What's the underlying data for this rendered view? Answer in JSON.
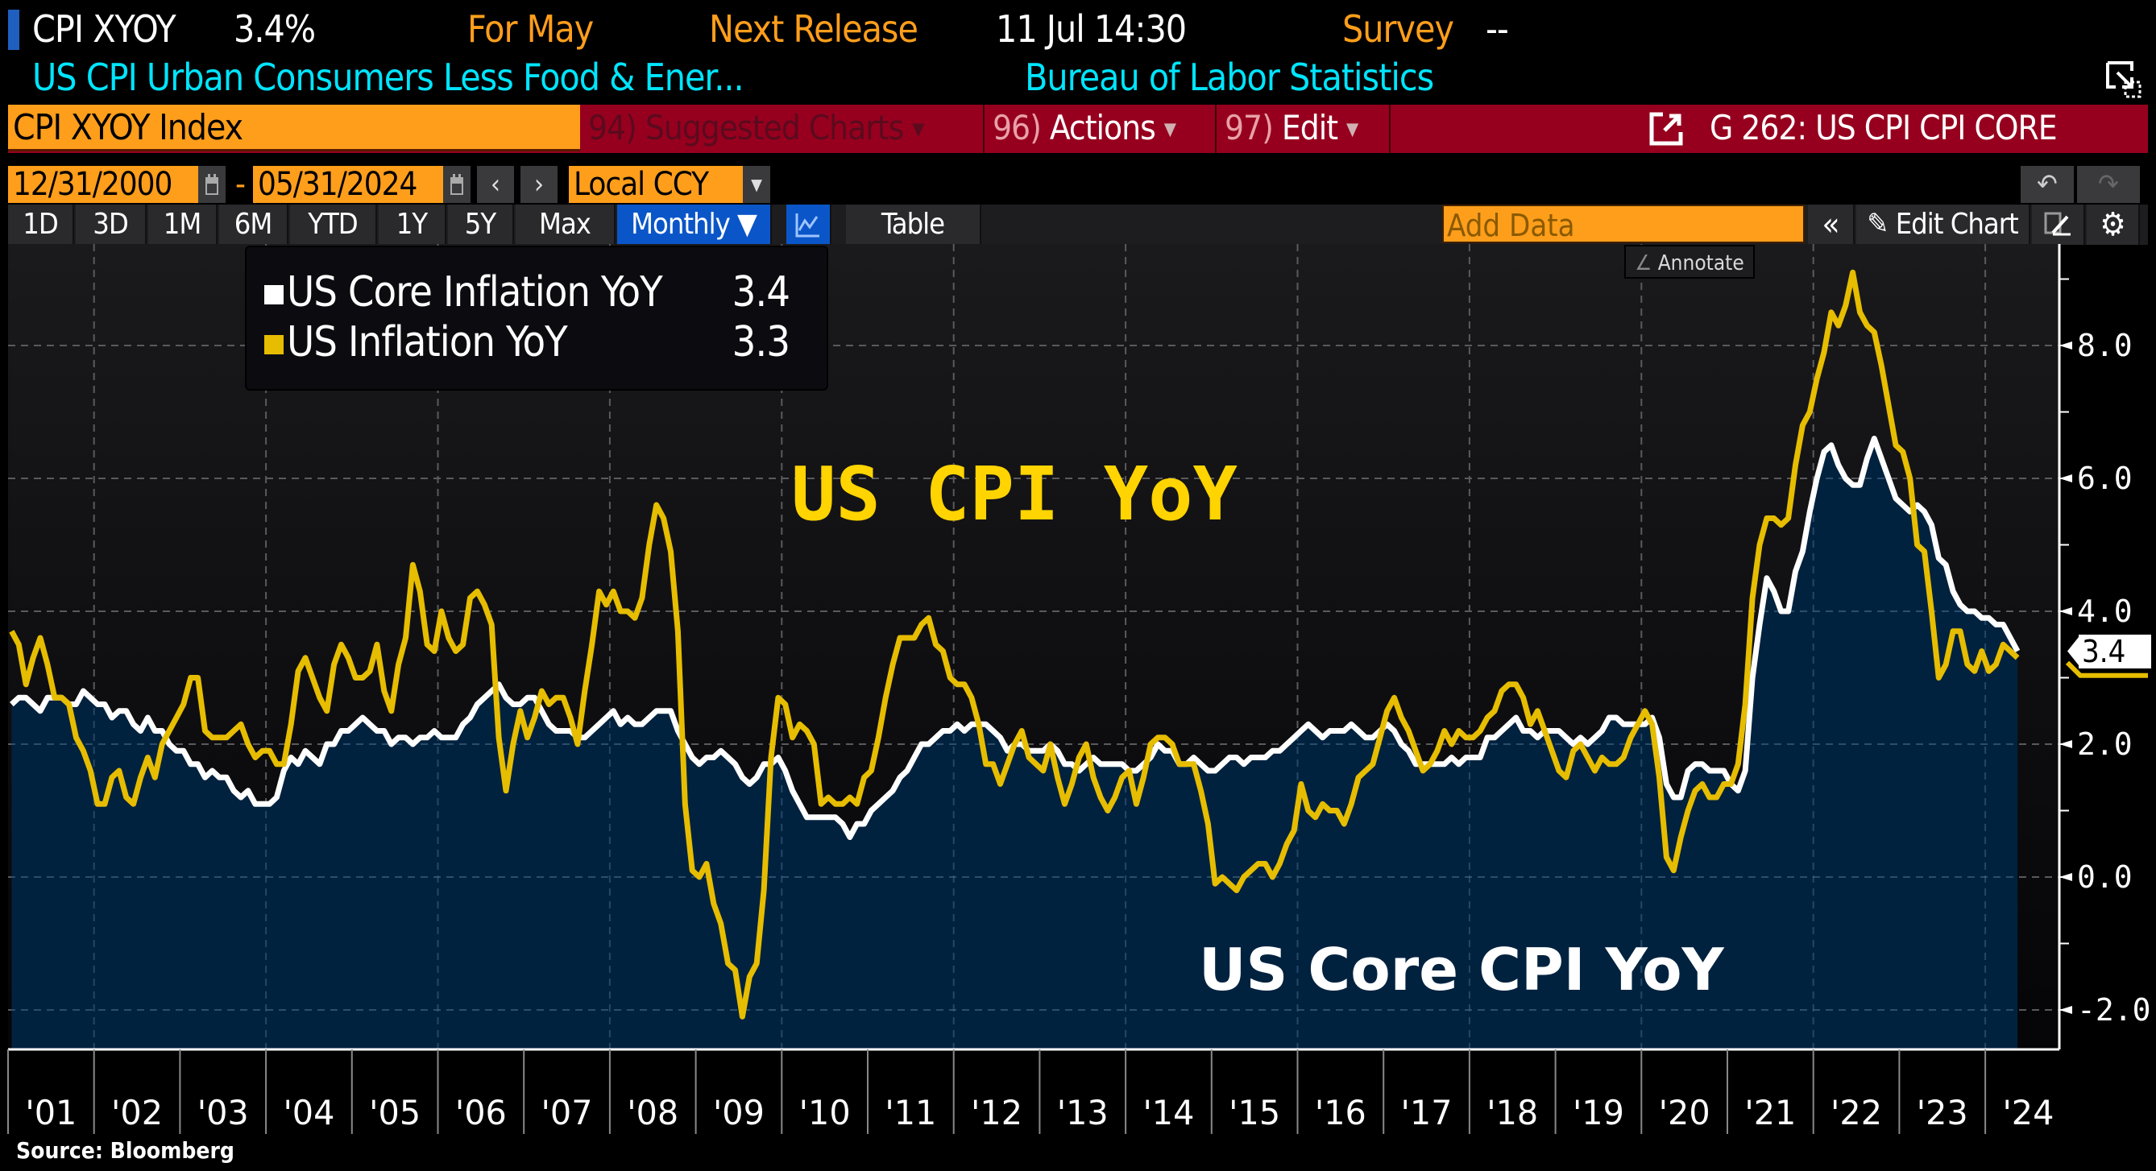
{
  "header": {
    "ticker": "CPI XYOY",
    "value": "3.4%",
    "period_label": "For May",
    "next_release_label": "Next Release",
    "next_release_value": "11 Jul 14:30",
    "survey_label": "Survey",
    "survey_value": "--",
    "description": "US CPI Urban Consumers Less Food & Ener...",
    "source_agency": "Bureau of Labor Statistics"
  },
  "command_bar": {
    "security": "CPI XYOY Index",
    "suggested_charts": {
      "num": "94)",
      "label": "Suggested Charts"
    },
    "actions": {
      "num": "96)",
      "label": "Actions"
    },
    "edit": {
      "num": "97)",
      "label": "Edit"
    },
    "chart_id": "G 262: US CPI CPI CORE"
  },
  "date_range": {
    "start": "12/31/2000",
    "separator": "-",
    "end": "05/31/2024",
    "prev": "‹",
    "next": "›",
    "currency": "Local CCY"
  },
  "tabs": {
    "periods": [
      "1D",
      "3D",
      "1M",
      "6M",
      "YTD",
      "1Y",
      "5Y",
      "Max"
    ],
    "frequency": "Monthly ▼",
    "table": "Table",
    "add_data_placeholder": "Add Data",
    "collapse": "«",
    "edit_chart": "Edit Chart",
    "undo": "↶",
    "redo": "↷",
    "annotate": "Annotate"
  },
  "colors": {
    "core": "#ffffff",
    "headline": "#e6bd00",
    "area_fill": "#01223f",
    "accent_orange": "#ff9e1b",
    "command_red": "#96001e",
    "cyan": "#00e5ff"
  },
  "chart_data": {
    "type": "line",
    "title": "",
    "annotations": [
      "US CPI YoY",
      "US Core CPI YoY"
    ],
    "xlabel": "",
    "ylabel": "",
    "x_start": "2001-01",
    "x_end": "2024-05",
    "frequency": "monthly",
    "ylim": [
      -2.6,
      9.5
    ],
    "yticks": [
      -2.0,
      0.0,
      2.0,
      4.0,
      6.0,
      8.0
    ],
    "ytick_labels": [
      "-2.0",
      "0.0",
      "2.0",
      "4.0",
      "6.0",
      "8.0"
    ],
    "xtick_labels": [
      "'01",
      "'02",
      "'03",
      "'04",
      "'05",
      "'06",
      "'07",
      "'08",
      "'09",
      "'10",
      "'11",
      "'12",
      "'13",
      "'14",
      "'15",
      "'16",
      "'17",
      "'18",
      "'19",
      "'20",
      "'21",
      "'22",
      "'23",
      "'24"
    ],
    "grid": true,
    "legend_position": "top-left",
    "last_value_label": "3.4",
    "source": "Source: Bloomberg",
    "series": [
      {
        "name": "US Core Inflation YoY",
        "legend_value": "3.4",
        "style": "area",
        "values": [
          2.6,
          2.7,
          2.7,
          2.6,
          2.5,
          2.7,
          2.7,
          2.7,
          2.6,
          2.6,
          2.8,
          2.7,
          2.6,
          2.6,
          2.4,
          2.5,
          2.5,
          2.3,
          2.2,
          2.4,
          2.2,
          2.2,
          2.0,
          1.9,
          1.9,
          1.7,
          1.7,
          1.5,
          1.6,
          1.5,
          1.5,
          1.3,
          1.2,
          1.3,
          1.1,
          1.1,
          1.1,
          1.2,
          1.6,
          1.8,
          1.7,
          1.9,
          1.8,
          1.7,
          2.0,
          2.0,
          2.2,
          2.2,
          2.3,
          2.4,
          2.3,
          2.2,
          2.2,
          2.0,
          2.1,
          2.1,
          2.0,
          2.1,
          2.1,
          2.2,
          2.1,
          2.1,
          2.1,
          2.3,
          2.4,
          2.6,
          2.7,
          2.8,
          2.9,
          2.7,
          2.6,
          2.6,
          2.7,
          2.7,
          2.5,
          2.3,
          2.2,
          2.2,
          2.2,
          2.1,
          2.1,
          2.2,
          2.3,
          2.4,
          2.5,
          2.3,
          2.4,
          2.3,
          2.3,
          2.4,
          2.5,
          2.5,
          2.5,
          2.2,
          2.0,
          1.8,
          1.7,
          1.8,
          1.8,
          1.9,
          1.8,
          1.7,
          1.5,
          1.4,
          1.5,
          1.7,
          1.7,
          1.8,
          1.6,
          1.3,
          1.1,
          0.9,
          0.9,
          0.9,
          0.9,
          0.9,
          0.8,
          0.6,
          0.8,
          0.8,
          1.0,
          1.1,
          1.2,
          1.3,
          1.5,
          1.6,
          1.8,
          2.0,
          2.0,
          2.1,
          2.2,
          2.2,
          2.3,
          2.2,
          2.3,
          2.3,
          2.3,
          2.2,
          2.1,
          1.9,
          2.0,
          2.0,
          1.9,
          1.9,
          1.9,
          2.0,
          1.9,
          1.7,
          1.7,
          1.6,
          1.7,
          1.8,
          1.7,
          1.7,
          1.7,
          1.7,
          1.6,
          1.6,
          1.7,
          1.8,
          2.0,
          1.9,
          1.9,
          1.7,
          1.7,
          1.8,
          1.7,
          1.6,
          1.6,
          1.7,
          1.8,
          1.8,
          1.7,
          1.8,
          1.8,
          1.8,
          1.9,
          1.9,
          2.0,
          2.1,
          2.2,
          2.3,
          2.2,
          2.1,
          2.2,
          2.2,
          2.2,
          2.3,
          2.2,
          2.1,
          2.1,
          2.2,
          2.3,
          2.2,
          2.0,
          1.9,
          1.7,
          1.7,
          1.7,
          1.7,
          1.7,
          1.8,
          1.7,
          1.8,
          1.8,
          1.8,
          2.1,
          2.1,
          2.2,
          2.3,
          2.4,
          2.2,
          2.2,
          2.1,
          2.2,
          2.2,
          2.2,
          2.1,
          2.0,
          2.1,
          2.0,
          2.1,
          2.2,
          2.4,
          2.4,
          2.3,
          2.3,
          2.3,
          2.3,
          2.4,
          2.1,
          1.4,
          1.2,
          1.2,
          1.6,
          1.7,
          1.7,
          1.6,
          1.6,
          1.6,
          1.4,
          1.3,
          1.6,
          3.0,
          3.8,
          4.5,
          4.3,
          4.0,
          4.0,
          4.6,
          4.9,
          5.5,
          6.0,
          6.4,
          6.5,
          6.2,
          6.0,
          5.9,
          5.9,
          6.3,
          6.6,
          6.3,
          6.0,
          5.7,
          5.6,
          5.5,
          5.6,
          5.5,
          5.3,
          4.8,
          4.7,
          4.3,
          4.1,
          4.0,
          4.0,
          3.9,
          3.9,
          3.8,
          3.8,
          3.6,
          3.4
        ]
      },
      {
        "name": "US Inflation YoY",
        "legend_value": "3.3",
        "style": "line",
        "values": [
          3.7,
          3.5,
          2.9,
          3.3,
          3.6,
          3.2,
          2.7,
          2.7,
          2.6,
          2.1,
          1.9,
          1.6,
          1.1,
          1.1,
          1.5,
          1.6,
          1.2,
          1.1,
          1.5,
          1.8,
          1.5,
          2.0,
          2.2,
          2.4,
          2.6,
          3.0,
          3.0,
          2.2,
          2.1,
          2.1,
          2.1,
          2.2,
          2.3,
          2.0,
          1.8,
          1.9,
          1.9,
          1.7,
          1.7,
          2.3,
          3.1,
          3.3,
          3.0,
          2.7,
          2.5,
          3.2,
          3.5,
          3.3,
          3.0,
          3.0,
          3.1,
          3.5,
          2.8,
          2.5,
          3.2,
          3.6,
          4.7,
          4.3,
          3.5,
          3.4,
          4.0,
          3.6,
          3.4,
          3.5,
          4.2,
          4.3,
          4.1,
          3.8,
          2.1,
          1.3,
          2.0,
          2.5,
          2.1,
          2.4,
          2.8,
          2.6,
          2.7,
          2.7,
          2.4,
          2.0,
          2.8,
          3.5,
          4.3,
          4.1,
          4.3,
          4.0,
          4.0,
          3.9,
          4.2,
          5.0,
          5.6,
          5.4,
          4.9,
          3.7,
          1.1,
          0.1,
          0.0,
          0.2,
          -0.4,
          -0.7,
          -1.3,
          -1.4,
          -2.1,
          -1.5,
          -1.3,
          -0.2,
          1.8,
          2.7,
          2.6,
          2.1,
          2.3,
          2.2,
          2.0,
          1.1,
          1.2,
          1.1,
          1.1,
          1.2,
          1.1,
          1.5,
          1.6,
          2.1,
          2.7,
          3.2,
          3.6,
          3.6,
          3.6,
          3.8,
          3.9,
          3.5,
          3.4,
          3.0,
          2.9,
          2.9,
          2.7,
          2.3,
          1.7,
          1.7,
          1.4,
          1.7,
          2.0,
          2.2,
          1.8,
          1.7,
          1.6,
          2.0,
          1.5,
          1.1,
          1.4,
          1.8,
          2.0,
          1.5,
          1.2,
          1.0,
          1.2,
          1.5,
          1.6,
          1.1,
          1.5,
          2.0,
          2.1,
          2.1,
          2.0,
          1.7,
          1.7,
          1.7,
          1.3,
          0.8,
          -0.1,
          0.0,
          -0.1,
          -0.2,
          0.0,
          0.1,
          0.2,
          0.2,
          0.0,
          0.2,
          0.5,
          0.7,
          1.4,
          1.0,
          0.9,
          1.1,
          1.0,
          1.0,
          0.8,
          1.1,
          1.5,
          1.6,
          1.7,
          2.1,
          2.5,
          2.7,
          2.4,
          2.2,
          1.9,
          1.6,
          1.7,
          1.9,
          2.2,
          2.0,
          2.2,
          2.1,
          2.1,
          2.2,
          2.4,
          2.5,
          2.8,
          2.9,
          2.9,
          2.7,
          2.3,
          2.5,
          2.2,
          1.9,
          1.6,
          1.5,
          1.9,
          2.0,
          1.8,
          1.6,
          1.8,
          1.7,
          1.7,
          1.8,
          2.1,
          2.3,
          2.5,
          2.3,
          1.5,
          0.3,
          0.1,
          0.6,
          1.0,
          1.3,
          1.4,
          1.2,
          1.2,
          1.4,
          1.4,
          1.7,
          2.6,
          4.2,
          5.0,
          5.4,
          5.4,
          5.3,
          5.4,
          6.2,
          6.8,
          7.0,
          7.5,
          7.9,
          8.5,
          8.3,
          8.6,
          9.1,
          8.5,
          8.3,
          8.2,
          7.7,
          7.1,
          6.5,
          6.4,
          6.0,
          5.0,
          4.9,
          4.0,
          3.0,
          3.2,
          3.7,
          3.7,
          3.2,
          3.1,
          3.4,
          3.1,
          3.2,
          3.5,
          3.4,
          3.3
        ]
      }
    ]
  }
}
